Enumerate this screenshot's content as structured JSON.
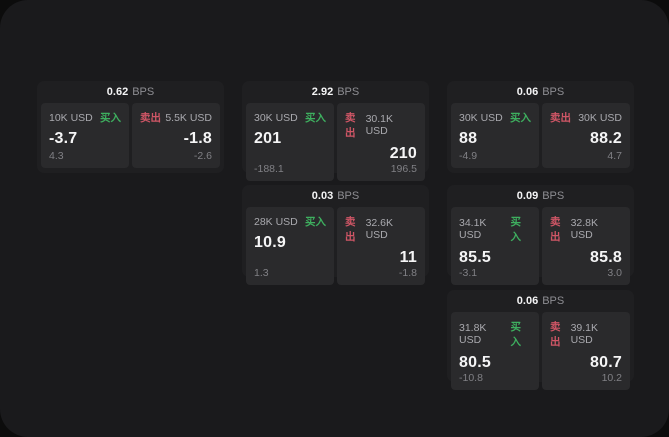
{
  "colors": {
    "buy_green": "#3eaf5f",
    "sell_red": "#d05666",
    "window_bg": "#1a1a1c",
    "card_bg": "#1f1f21",
    "panel_bg": "#2a2a2c"
  },
  "cards": [
    {
      "bps_value": "0.62",
      "bps_unit": "BPS",
      "buy": {
        "amount": "10K USD",
        "tag": "买入",
        "value": "-3.7",
        "sub": "4.3"
      },
      "sell": {
        "tag": "卖出",
        "amount": "5.5K USD",
        "value": "-1.8",
        "sub": "-2.6"
      }
    },
    {
      "bps_value": "2.92",
      "bps_unit": "BPS",
      "buy": {
        "amount": "30K USD",
        "tag": "买入",
        "value": "201",
        "sub": "-188.1"
      },
      "sell": {
        "tag": "卖出",
        "amount": "30.1K USD",
        "value": "210",
        "sub": "196.5"
      }
    },
    {
      "bps_value": "0.06",
      "bps_unit": "BPS",
      "buy": {
        "amount": "30K USD",
        "tag": "买入",
        "value": "88",
        "sub": "-4.9"
      },
      "sell": {
        "tag": "卖出",
        "amount": "30K USD",
        "value": "88.2",
        "sub": "4.7"
      }
    },
    {
      "bps_value": "0.03",
      "bps_unit": "BPS",
      "buy": {
        "amount": "28K USD",
        "tag": "买入",
        "value": "10.9",
        "sub": "1.3"
      },
      "sell": {
        "tag": "卖出",
        "amount": "32.6K USD",
        "value": "11",
        "sub": "-1.8"
      }
    },
    {
      "bps_value": "0.09",
      "bps_unit": "BPS",
      "buy": {
        "amount": "34.1K USD",
        "tag": "买入",
        "value": "85.5",
        "sub": "-3.1"
      },
      "sell": {
        "tag": "卖出",
        "amount": "32.8K USD",
        "value": "85.8",
        "sub": "3.0"
      }
    },
    {
      "bps_value": "0.06",
      "bps_unit": "BPS",
      "buy": {
        "amount": "31.8K USD",
        "tag": "买入",
        "value": "80.5",
        "sub": "-10.8"
      },
      "sell": {
        "tag": "卖出",
        "amount": "39.1K USD",
        "value": "80.7",
        "sub": "10.2"
      }
    }
  ]
}
